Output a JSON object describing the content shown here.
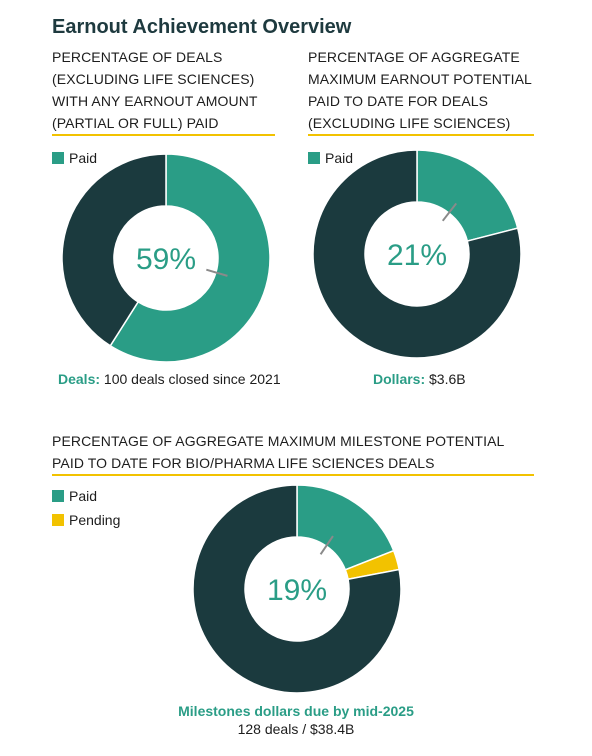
{
  "title": "Earnout Achievement Overview",
  "colors": {
    "paid": "#2a9d86",
    "pending": "#f2c200",
    "remainder": "#1b3a3e",
    "rule": "#f2c200"
  },
  "legend": {
    "paid": "Paid",
    "pending": "Pending"
  },
  "chart_data": [
    {
      "type": "pie",
      "title": "PERCENTAGE OF DEALS (EXCLUDING LIFE SCIENCES) WITH ANY EARNOUT AMOUNT (PARTIAL OR FULL) PAID",
      "title_lines": [
        "PERCENTAGE OF DEALS",
        "(EXCLUDING LIFE SCIENCES)",
        "WITH ANY EARNOUT AMOUNT",
        "(PARTIAL OR FULL) PAID"
      ],
      "slices": [
        {
          "label": "Paid",
          "value": 59
        },
        {
          "label": "",
          "value": 41
        }
      ],
      "center_label": "59%",
      "caption_key": "Deals:",
      "caption_value": " 100 deals closed since 2021"
    },
    {
      "type": "pie",
      "title": "PERCENTAGE OF AGGREGATE MAXIMUM EARNOUT POTENTIAL PAID TO DATE FOR DEALS (EXCLUDING LIFE SCIENCES)",
      "title_lines": [
        "PERCENTAGE OF AGGREGATE",
        "MAXIMUM EARNOUT POTENTIAL",
        "PAID TO DATE FOR DEALS",
        "(EXCLUDING LIFE SCIENCES)"
      ],
      "slices": [
        {
          "label": "Paid",
          "value": 21
        },
        {
          "label": "",
          "value": 79
        }
      ],
      "center_label": "21%",
      "caption_key": "Dollars:",
      "caption_value": " $3.6B"
    },
    {
      "type": "pie",
      "title": "PERCENTAGE OF AGGREGATE MAXIMUM MILESTONE POTENTIAL PAID TO DATE FOR BIO/PHARMA LIFE SCIENCES DEALS",
      "title_lines": [
        "PERCENTAGE OF AGGREGATE MAXIMUM MILESTONE POTENTIAL",
        "PAID TO DATE FOR BIO/PHARMA LIFE SCIENCES DEALS"
      ],
      "slices": [
        {
          "label": "Paid",
          "value": 19
        },
        {
          "label": "Pending",
          "value": 3
        },
        {
          "label": "",
          "value": 78
        }
      ],
      "center_label": "19%",
      "caption_key": "Milestones dollars due by mid-2025",
      "caption_value": "128 deals / $38.4B"
    }
  ]
}
